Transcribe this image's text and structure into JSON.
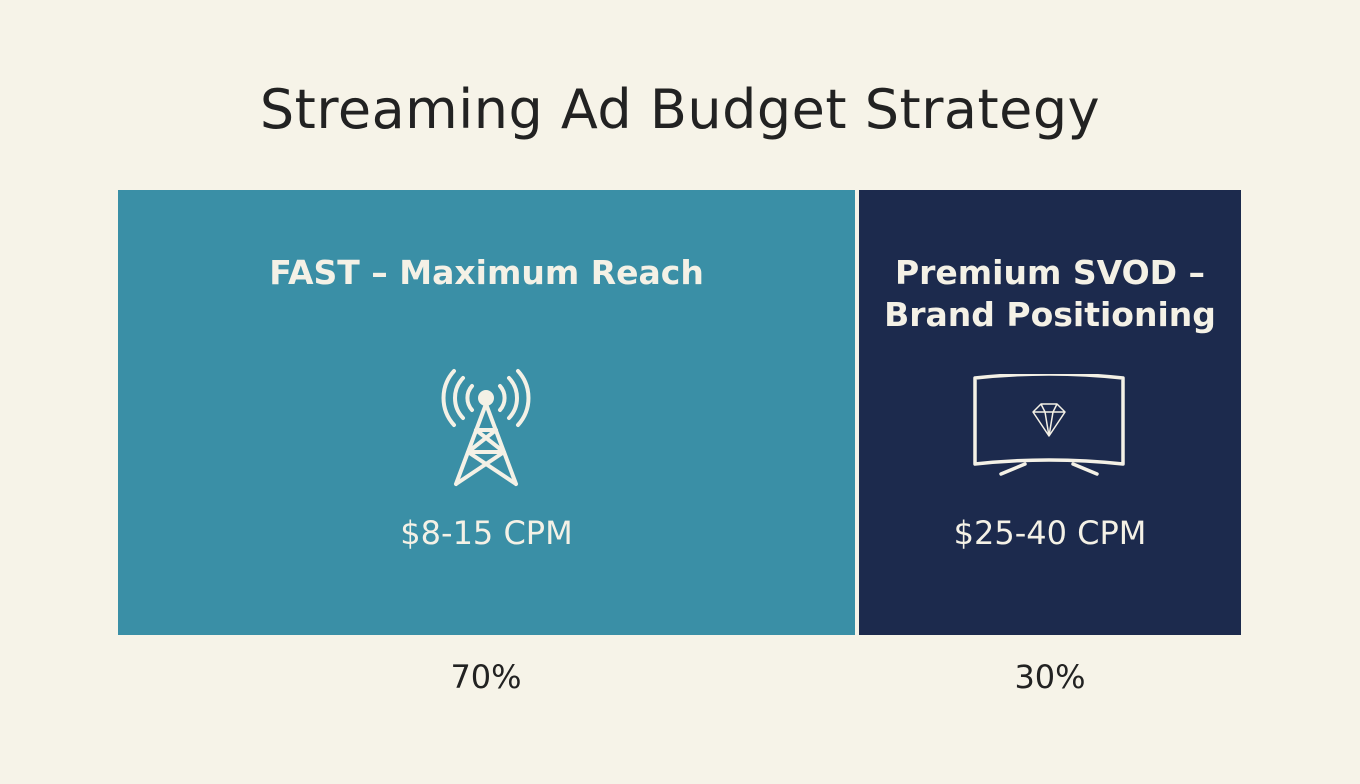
{
  "header": {
    "title": "Streaming Ad Budget Strategy"
  },
  "panels": [
    {
      "title_lines": [
        "FAST – Maximum Reach"
      ],
      "price": "$8-15 CPM",
      "share": "70%"
    },
    {
      "title_lines": [
        "Premium SVOD –",
        "Brand Positioning"
      ],
      "price": "$25-40 CPM",
      "share": "30%"
    }
  ]
}
